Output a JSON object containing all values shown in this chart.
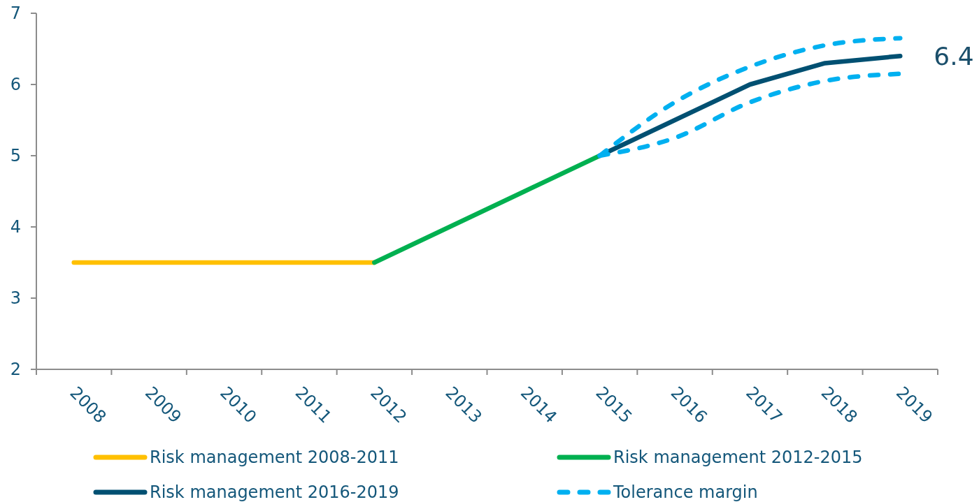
{
  "chart_data": {
    "type": "line",
    "categories": [
      "2008",
      "2009",
      "2010",
      "2011",
      "2012",
      "2013",
      "2014",
      "2015",
      "2016",
      "2017",
      "2018",
      "2019"
    ],
    "ylim": [
      2,
      7
    ],
    "yticks": [
      2,
      3,
      4,
      5,
      6,
      7
    ],
    "legend": "bottom",
    "series": [
      {
        "name": "Risk management 2008-2011",
        "color": "#ffc000",
        "values": [
          3.5,
          3.5,
          3.5,
          3.5,
          3.5,
          null,
          null,
          null,
          null,
          null,
          null,
          null
        ]
      },
      {
        "name": "Risk management 2012-2015",
        "color": "#00b050",
        "values": [
          null,
          null,
          null,
          null,
          3.5,
          4,
          4.5,
          5,
          null,
          null,
          null,
          null
        ]
      },
      {
        "name": "Risk management 2016-2019",
        "color": "#005072",
        "values": [
          null,
          null,
          null,
          null,
          null,
          null,
          null,
          5,
          5.5,
          6,
          6.3,
          6.4
        ]
      },
      {
        "name": "Tolerance margin",
        "color": "#00b0f0",
        "line_style": "dashed",
        "values": [
          null,
          null,
          null,
          null,
          null,
          null,
          null,
          5,
          5.75,
          6.25,
          6.55,
          6.65
        ]
      },
      {
        "color": "#00b0f0",
        "line_style": "dashed",
        "values": [
          null,
          null,
          null,
          null,
          null,
          null,
          null,
          5,
          5.25,
          5.75,
          6.05,
          6.15
        ]
      }
    ],
    "annotations": [
      {
        "text": "6.4",
        "x": "2019",
        "y": 6.4
      }
    ]
  }
}
